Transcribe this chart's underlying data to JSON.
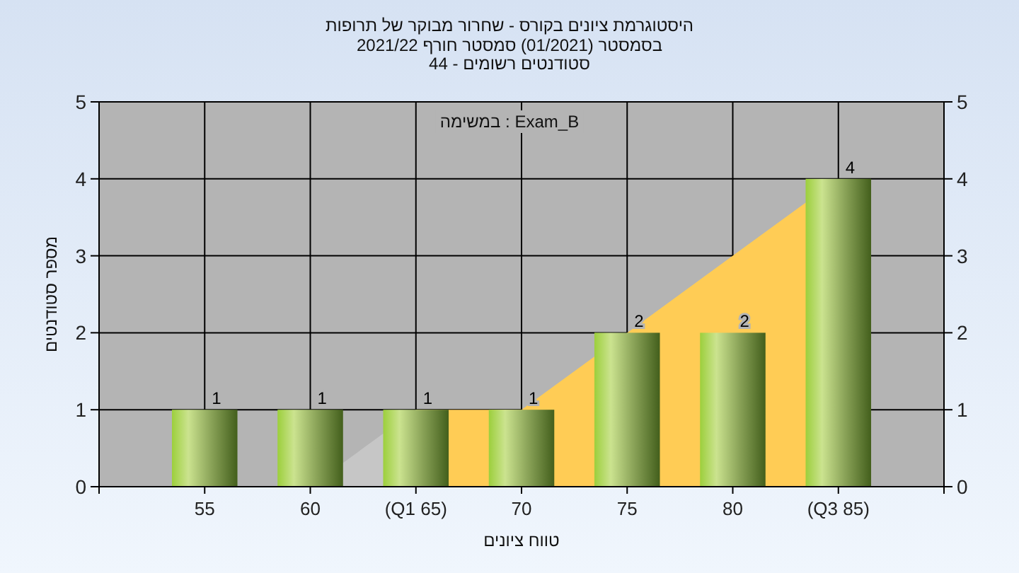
{
  "chart_data": {
    "type": "bar",
    "title": "היסטוגרמת ציונים בקורס - שחרור מבוקר של תרופות",
    "subtitle": "בסמסטר (01/2021) סמסטר חורף 2021/22\nסטודנטים רשומים - 44",
    "xlabel": "טווח ציונים",
    "ylabel": "מספר סטודנטים",
    "annotations": [
      "במשימה : Exam_B"
    ],
    "categories": [
      "55",
      "60",
      "(Q1 65)",
      "70",
      "75",
      "80",
      "(Q3 85)"
    ],
    "series": [
      {
        "type": "area",
        "color": "#c6c6c6",
        "values": [
          null,
          0,
          1,
          null,
          null,
          null,
          null
        ]
      },
      {
        "type": "area",
        "color": "#ffcc55",
        "values": [
          null,
          null,
          1,
          1,
          2,
          3,
          4
        ]
      },
      {
        "color": "#8db04a",
        "values": [
          1,
          1,
          1,
          1,
          2,
          2,
          4
        ],
        "value_labels": [
          "1",
          "1",
          "1",
          "1",
          "2",
          "2",
          "4"
        ]
      }
    ],
    "ylim": [
      0,
      5
    ],
    "yticks": [
      0,
      1,
      2,
      3,
      4,
      5
    ],
    "y2lim": [
      0,
      5
    ],
    "y2ticks": [
      0,
      1,
      2,
      3,
      4,
      5
    ],
    "grid": true
  }
}
